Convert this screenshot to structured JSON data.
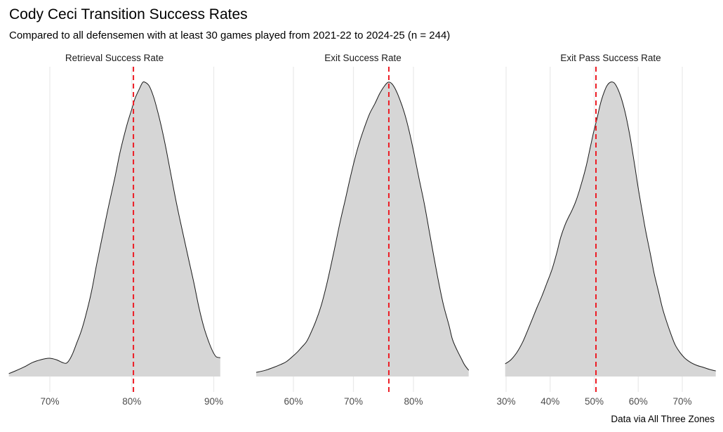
{
  "page": {
    "title": "Cody Ceci Transition Success Rates",
    "subtitle": "Compared to all defensemen with at least 30 games played from 2021-22 to 2024-25 (n = 244)",
    "caption": "Data via All Three Zones"
  },
  "colors": {
    "density_fill": "#d6d6d6",
    "density_outline": "#1a1a1a",
    "player_line": "#ed1c24",
    "gridline": "#e9e9e9",
    "axis_text": "#4d4d4d",
    "background": "#ffffff"
  },
  "chart_data": {
    "type": "area",
    "subtype": "kernel-density",
    "grid": "vertical major gridlines only",
    "legend": "none",
    "x_axis_format": "percent",
    "panels": [
      {
        "title": "Retrieval Success Rate",
        "xticks": [
          {
            "label": "70%",
            "value": 70
          },
          {
            "label": "80%",
            "value": 80
          },
          {
            "label": "90%",
            "value": 90
          }
        ],
        "xlim": [
          65.0,
          90.8
        ],
        "player_line_pct": 80.2,
        "curve": [
          [
            65.0,
            0.01
          ],
          [
            65.8,
            0.019
          ],
          [
            66.9,
            0.033
          ],
          [
            67.9,
            0.048
          ],
          [
            68.9,
            0.057
          ],
          [
            69.9,
            0.062
          ],
          [
            70.8,
            0.057
          ],
          [
            71.5,
            0.048
          ],
          [
            72.0,
            0.045
          ],
          [
            72.4,
            0.057
          ],
          [
            72.8,
            0.079
          ],
          [
            73.3,
            0.115
          ],
          [
            73.9,
            0.16
          ],
          [
            74.5,
            0.22
          ],
          [
            75.1,
            0.291
          ],
          [
            75.7,
            0.379
          ],
          [
            76.4,
            0.475
          ],
          [
            77.1,
            0.57
          ],
          [
            77.9,
            0.671
          ],
          [
            78.6,
            0.766
          ],
          [
            79.4,
            0.854
          ],
          [
            80.0,
            0.909
          ],
          [
            80.4,
            0.945
          ],
          [
            80.9,
            0.976
          ],
          [
            81.3,
            0.998
          ],
          [
            81.6,
            1.0
          ],
          [
            82.1,
            0.988
          ],
          [
            82.6,
            0.955
          ],
          [
            83.1,
            0.907
          ],
          [
            83.6,
            0.85
          ],
          [
            84.2,
            0.771
          ],
          [
            84.8,
            0.683
          ],
          [
            85.5,
            0.582
          ],
          [
            86.2,
            0.492
          ],
          [
            86.9,
            0.403
          ],
          [
            87.6,
            0.315
          ],
          [
            88.2,
            0.234
          ],
          [
            88.8,
            0.167
          ],
          [
            89.4,
            0.117
          ],
          [
            89.9,
            0.084
          ],
          [
            90.3,
            0.067
          ],
          [
            90.8,
            0.064
          ]
        ]
      },
      {
        "title": "Exit Success Rate",
        "xticks": [
          {
            "label": "60%",
            "value": 60
          },
          {
            "label": "70%",
            "value": 70
          },
          {
            "label": "80%",
            "value": 80
          }
        ],
        "xlim": [
          53.8,
          89.2
        ],
        "player_line_pct": 75.9,
        "curve": [
          [
            53.8,
            0.014
          ],
          [
            55.3,
            0.021
          ],
          [
            56.7,
            0.031
          ],
          [
            57.9,
            0.041
          ],
          [
            58.8,
            0.05
          ],
          [
            59.8,
            0.067
          ],
          [
            60.7,
            0.084
          ],
          [
            61.4,
            0.1
          ],
          [
            62.2,
            0.119
          ],
          [
            62.9,
            0.148
          ],
          [
            63.7,
            0.186
          ],
          [
            64.6,
            0.239
          ],
          [
            65.4,
            0.301
          ],
          [
            66.2,
            0.372
          ],
          [
            67.0,
            0.449
          ],
          [
            67.8,
            0.527
          ],
          [
            68.7,
            0.606
          ],
          [
            69.5,
            0.678
          ],
          [
            70.3,
            0.745
          ],
          [
            71.1,
            0.802
          ],
          [
            71.9,
            0.85
          ],
          [
            72.7,
            0.893
          ],
          [
            73.6,
            0.928
          ],
          [
            74.4,
            0.962
          ],
          [
            75.2,
            0.988
          ],
          [
            75.8,
            1.0
          ],
          [
            76.4,
            0.995
          ],
          [
            77.0,
            0.976
          ],
          [
            77.7,
            0.943
          ],
          [
            78.5,
            0.895
          ],
          [
            79.3,
            0.833
          ],
          [
            80.1,
            0.757
          ],
          [
            80.9,
            0.676
          ],
          [
            81.8,
            0.588
          ],
          [
            82.6,
            0.498
          ],
          [
            83.4,
            0.407
          ],
          [
            84.2,
            0.321
          ],
          [
            85.0,
            0.243
          ],
          [
            85.9,
            0.176
          ],
          [
            86.5,
            0.126
          ],
          [
            87.3,
            0.088
          ],
          [
            88.0,
            0.06
          ],
          [
            88.5,
            0.04
          ],
          [
            89.2,
            0.021
          ]
        ]
      },
      {
        "title": "Exit Pass Success Rate",
        "xticks": [
          {
            "label": "30%",
            "value": 30
          },
          {
            "label": "40%",
            "value": 40
          },
          {
            "label": "50%",
            "value": 50
          },
          {
            "label": "60%",
            "value": 60
          },
          {
            "label": "70%",
            "value": 70
          }
        ],
        "xlim": [
          29.8,
          77.6
        ],
        "player_line_pct": 50.4,
        "curve": [
          [
            29.8,
            0.043
          ],
          [
            31.1,
            0.057
          ],
          [
            32.4,
            0.081
          ],
          [
            33.7,
            0.115
          ],
          [
            34.8,
            0.153
          ],
          [
            35.9,
            0.193
          ],
          [
            37.0,
            0.234
          ],
          [
            38.1,
            0.272
          ],
          [
            39.2,
            0.315
          ],
          [
            40.4,
            0.363
          ],
          [
            41.5,
            0.42
          ],
          [
            42.4,
            0.473
          ],
          [
            43.4,
            0.516
          ],
          [
            44.2,
            0.542
          ],
          [
            45.0,
            0.566
          ],
          [
            45.8,
            0.594
          ],
          [
            46.6,
            0.63
          ],
          [
            47.4,
            0.671
          ],
          [
            48.2,
            0.716
          ],
          [
            49.0,
            0.771
          ],
          [
            49.8,
            0.826
          ],
          [
            50.6,
            0.874
          ],
          [
            51.4,
            0.926
          ],
          [
            52.2,
            0.964
          ],
          [
            52.9,
            0.988
          ],
          [
            53.7,
            1.0
          ],
          [
            54.5,
            0.998
          ],
          [
            55.3,
            0.979
          ],
          [
            56.1,
            0.948
          ],
          [
            56.9,
            0.905
          ],
          [
            57.7,
            0.85
          ],
          [
            58.5,
            0.783
          ],
          [
            59.3,
            0.707
          ],
          [
            60.1,
            0.63
          ],
          [
            60.9,
            0.561
          ],
          [
            61.7,
            0.494
          ],
          [
            62.7,
            0.42
          ],
          [
            63.6,
            0.351
          ],
          [
            64.6,
            0.289
          ],
          [
            65.5,
            0.232
          ],
          [
            66.5,
            0.184
          ],
          [
            67.5,
            0.141
          ],
          [
            68.4,
            0.107
          ],
          [
            69.5,
            0.081
          ],
          [
            70.6,
            0.062
          ],
          [
            71.9,
            0.048
          ],
          [
            73.3,
            0.038
          ],
          [
            74.8,
            0.031
          ],
          [
            76.2,
            0.024
          ],
          [
            77.6,
            0.019
          ]
        ]
      }
    ]
  }
}
